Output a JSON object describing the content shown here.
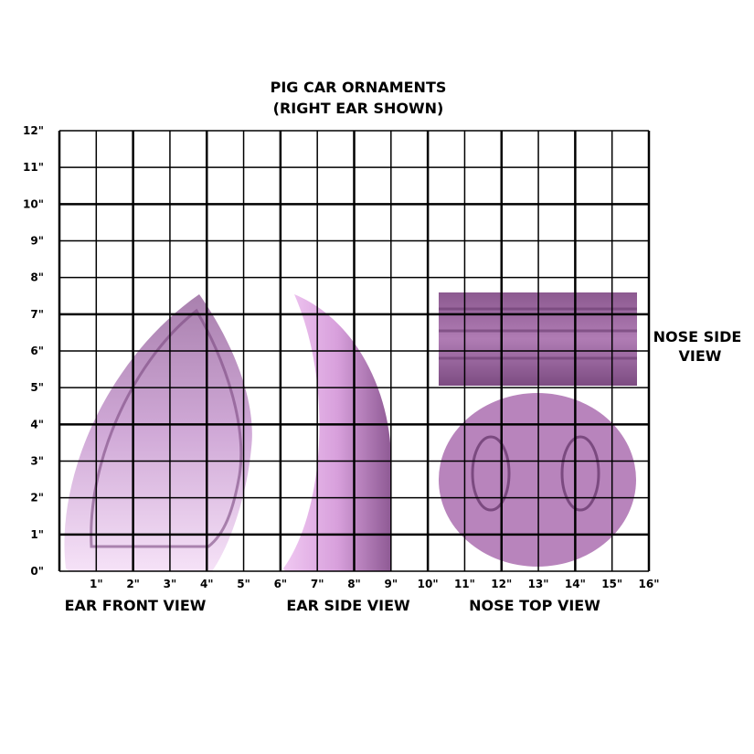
{
  "title": [
    "PIG CAR ORNAMENTS",
    "(RIGHT EAR SHOWN)"
  ],
  "y_labels": [
    "0\"",
    "1\"",
    "2\"",
    "3\"",
    "4\"",
    "5\"",
    "6\"",
    "7\"",
    "8\"",
    "9\"",
    "10\"",
    "11\"",
    "12\""
  ],
  "x_labels": [
    "1\"",
    "2\"",
    "3\"",
    "4\"",
    "5\"",
    "6\"",
    "7\"",
    "8\"",
    "9\"",
    "10\"",
    "11\"",
    "12\"",
    "13\"",
    "14\"",
    "15\"",
    "16\""
  ],
  "view_labels": [
    "EAR FRONT VIEW",
    "EAR SIDE VIEW",
    "NOSE TOP VIEW"
  ],
  "side_label": [
    "NOSE SIDE",
    "VIEW"
  ]
}
